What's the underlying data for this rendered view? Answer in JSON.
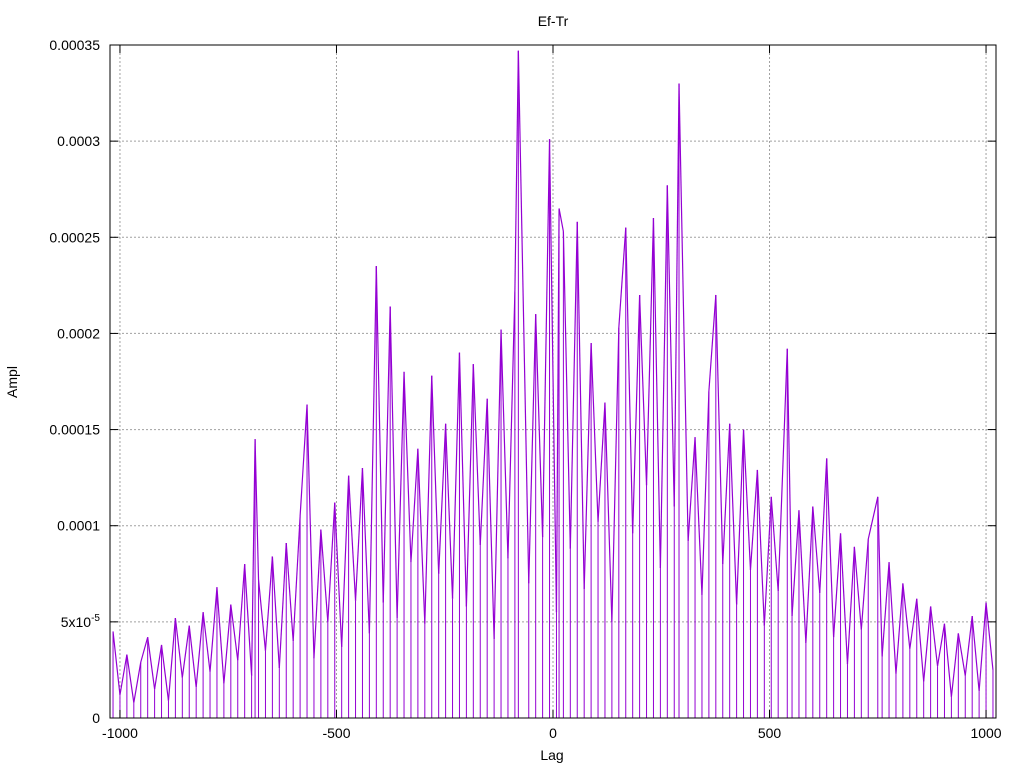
{
  "chart_data": {
    "type": "line",
    "title": "Ef-Tr",
    "xlabel": "Lag",
    "ylabel": "Ampl",
    "xlim": [
      -1023,
      1023
    ],
    "ylim": [
      0,
      0.00035
    ],
    "grid": true,
    "color": "#9400d3",
    "xticks": [
      {
        "value": -1000,
        "label": "-1000"
      },
      {
        "value": -500,
        "label": "-500"
      },
      {
        "value": 0,
        "label": "0"
      },
      {
        "value": 500,
        "label": "500"
      },
      {
        "value": 1000,
        "label": "1000"
      }
    ],
    "yticks": [
      {
        "value": 0,
        "label": "0"
      },
      {
        "value": 5e-05,
        "label": "5x10",
        "sup": "-5"
      },
      {
        "value": 0.0001,
        "label": "0.0001"
      },
      {
        "value": 0.00015,
        "label": "0.00015"
      },
      {
        "value": 0.0002,
        "label": "0.0002"
      },
      {
        "value": 0.00025,
        "label": "0.00025"
      },
      {
        "value": 0.0003,
        "label": "0.0003"
      },
      {
        "value": 0.00035,
        "label": "0.00035"
      }
    ],
    "points": [
      [
        -1016,
        4.5e-05
      ],
      [
        -1000,
        1.2e-05
      ],
      [
        -984,
        3.3e-05
      ],
      [
        -968,
        8e-06
      ],
      [
        -952,
        2.9e-05
      ],
      [
        -936,
        4.2e-05
      ],
      [
        -920,
        1.5e-05
      ],
      [
        -904,
        3.8e-05
      ],
      [
        -888,
        9e-06
      ],
      [
        -872,
        5.2e-05
      ],
      [
        -856,
        2.1e-05
      ],
      [
        -840,
        4.8e-05
      ],
      [
        -824,
        1.6e-05
      ],
      [
        -808,
        5.5e-05
      ],
      [
        -792,
        2.4e-05
      ],
      [
        -776,
        6.8e-05
      ],
      [
        -760,
        1.8e-05
      ],
      [
        -744,
        5.9e-05
      ],
      [
        -728,
        3e-05
      ],
      [
        -712,
        8e-05
      ],
      [
        -696,
        2.2e-05
      ],
      [
        -688,
        0.000145
      ],
      [
        -680,
        7.2e-05
      ],
      [
        -664,
        3.5e-05
      ],
      [
        -648,
        8.4e-05
      ],
      [
        -632,
        2.6e-05
      ],
      [
        -616,
        9.1e-05
      ],
      [
        -600,
        4e-05
      ],
      [
        -584,
        0.000105
      ],
      [
        -568,
        0.000163
      ],
      [
        -552,
        3.1e-05
      ],
      [
        -536,
        9.8e-05
      ],
      [
        -520,
        5e-05
      ],
      [
        -504,
        0.000112
      ],
      [
        -488,
        3.7e-05
      ],
      [
        -472,
        0.000126
      ],
      [
        -456,
        6.1e-05
      ],
      [
        -440,
        0.00013
      ],
      [
        -424,
        4.4e-05
      ],
      [
        -408,
        0.000235
      ],
      [
        -392,
        6e-05
      ],
      [
        -376,
        0.000214
      ],
      [
        -360,
        5.2e-05
      ],
      [
        -344,
        0.00018
      ],
      [
        -328,
        8.1e-05
      ],
      [
        -312,
        0.00014
      ],
      [
        -296,
        4.9e-05
      ],
      [
        -280,
        0.000178
      ],
      [
        -264,
        7.5e-05
      ],
      [
        -248,
        0.000153
      ],
      [
        -232,
        6.2e-05
      ],
      [
        -216,
        0.00019
      ],
      [
        -200,
        5.8e-05
      ],
      [
        -184,
        0.000184
      ],
      [
        -168,
        9e-05
      ],
      [
        -152,
        0.000166
      ],
      [
        -136,
        4.1e-05
      ],
      [
        -120,
        0.000202
      ],
      [
        -104,
        8.3e-05
      ],
      [
        -88,
        0.000222
      ],
      [
        -80,
        0.000347
      ],
      [
        -56,
        7e-05
      ],
      [
        -40,
        0.00021
      ],
      [
        -24,
        9.4e-05
      ],
      [
        -8,
        0.000301
      ],
      [
        8,
        5.5e-05
      ],
      [
        14,
        0.000265
      ],
      [
        24,
        0.000253
      ],
      [
        40,
        8.8e-05
      ],
      [
        56,
        0.000258
      ],
      [
        72,
        6.7e-05
      ],
      [
        88,
        0.000195
      ],
      [
        104,
        0.000102
      ],
      [
        120,
        0.000164
      ],
      [
        136,
        5e-05
      ],
      [
        152,
        0.000203
      ],
      [
        168,
        0.000255
      ],
      [
        184,
        9.6e-05
      ],
      [
        200,
        0.00022
      ],
      [
        216,
        0.000121
      ],
      [
        232,
        0.00026
      ],
      [
        248,
        7.8e-05
      ],
      [
        264,
        0.000277
      ],
      [
        280,
        0.00011
      ],
      [
        291,
        0.00033
      ],
      [
        312,
        9.2e-05
      ],
      [
        328,
        0.000146
      ],
      [
        344,
        6.4e-05
      ],
      [
        360,
        0.00017
      ],
      [
        376,
        0.00022
      ],
      [
        392,
        8e-05
      ],
      [
        408,
        0.000153
      ],
      [
        424,
        5.9e-05
      ],
      [
        440,
        0.00015
      ],
      [
        456,
        7.7e-05
      ],
      [
        472,
        0.000129
      ],
      [
        488,
        4.8e-05
      ],
      [
        504,
        0.000115
      ],
      [
        520,
        6.6e-05
      ],
      [
        541,
        0.000192
      ],
      [
        552,
        5.3e-05
      ],
      [
        568,
        0.000108
      ],
      [
        584,
        3.9e-05
      ],
      [
        600,
        0.00011
      ],
      [
        616,
        6.5e-05
      ],
      [
        632,
        0.000135
      ],
      [
        648,
        4.2e-05
      ],
      [
        664,
        9.6e-05
      ],
      [
        680,
        2.8e-05
      ],
      [
        696,
        8.9e-05
      ],
      [
        712,
        4.6e-05
      ],
      [
        728,
        9.3e-05
      ],
      [
        750,
        0.000115
      ],
      [
        760,
        3.2e-05
      ],
      [
        776,
        8.1e-05
      ],
      [
        792,
        2.3e-05
      ],
      [
        808,
        7e-05
      ],
      [
        824,
        3.6e-05
      ],
      [
        840,
        6.2e-05
      ],
      [
        856,
        1.9e-05
      ],
      [
        872,
        5.8e-05
      ],
      [
        888,
        2.7e-05
      ],
      [
        904,
        4.9e-05
      ],
      [
        920,
        1.1e-05
      ],
      [
        936,
        4.4e-05
      ],
      [
        952,
        2.2e-05
      ],
      [
        968,
        5.3e-05
      ],
      [
        984,
        1.4e-05
      ],
      [
        1000,
        6e-05
      ],
      [
        1016,
        2.5e-05
      ]
    ]
  }
}
